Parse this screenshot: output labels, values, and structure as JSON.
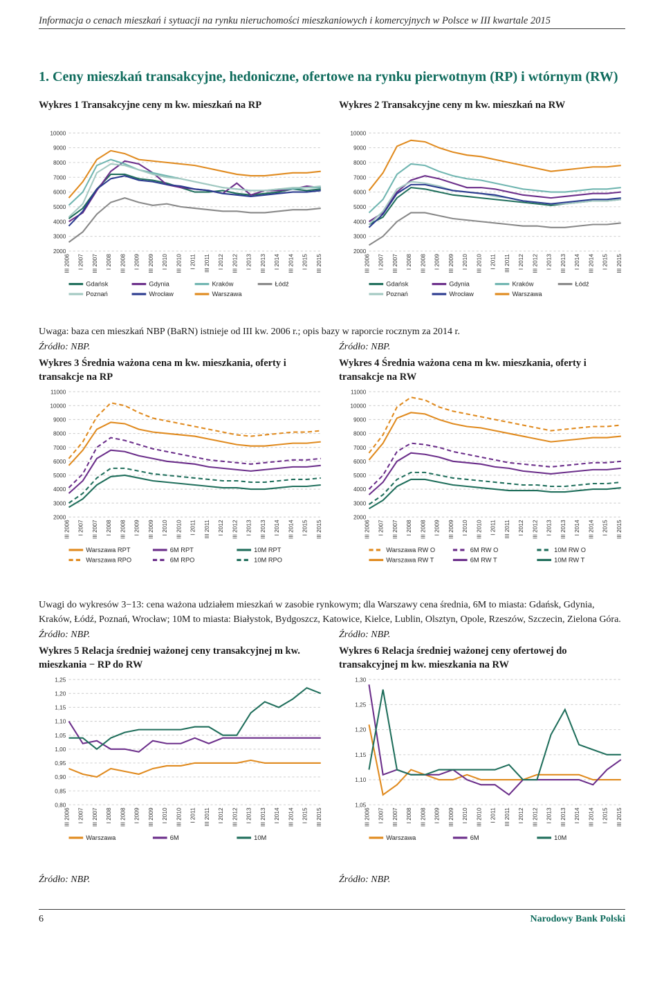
{
  "running_head": "Informacja o cenach mieszkań i sytuacji na rynku nieruchomości mieszkaniowych i komercyjnych w Polsce w III kwartale 2015",
  "section_title": "1. Ceny mieszkań transakcyjne, hedoniczne, ofertowe na rynku pierwotnym (RP) i wtórnym (RW)",
  "note1": "Uwaga: baza cen mieszkań NBP (BaRN) istnieje od III kw. 2006 r.; opis bazy w raporcie rocznym za 2014 r.",
  "note2": "Uwagi do wykresów 3−13: cena ważona udziałem mieszkań w zasobie rynkowym; dla Warszawy cena średnia, 6M to miasta: Gdańsk, Gdynia, Kraków, Łódź, Poznań, Wrocław; 10M to miasta: Białystok, Bydgoszcz, Katowice, Kielce, Lublin, Olsztyn, Opole, Rzeszów, Szczecin, Zielona Góra.",
  "source": "Źródło: NBP.",
  "footer": {
    "page": "6",
    "bank": "Narodowy Bank Polski"
  },
  "x_labels": [
    "III 2006",
    "I 2007",
    "III 2007",
    "I 2008",
    "III 2008",
    "I 2009",
    "III 2009",
    "I 2010",
    "III 2010",
    "I 2011",
    "III 2011",
    "I 2012",
    "III 2012",
    "I 2013",
    "III 2013",
    "I 2014",
    "III 2014",
    "I 2015",
    "III 2015"
  ],
  "city_colors": {
    "Gdańsk": "#1f6e5b",
    "Gdynia": "#6b2e8a",
    "Kraków": "#6fb5b0",
    "Łódź": "#888888",
    "Poznań": "#a3c9c2",
    "Wrocław": "#2b3a8f",
    "Warszawa": "#e08a1e"
  },
  "city_legend": [
    "Gdańsk",
    "Gdynia",
    "Kraków",
    "Łódź",
    "Poznań",
    "Wrocław",
    "Warszawa"
  ],
  "chart1": {
    "type": "line",
    "title": "Wykres 1 Transakcyjne ceny m kw. mieszkań na RP",
    "ylim": [
      2000,
      10000
    ],
    "ytick_step": 1000,
    "background_color": "#ffffff",
    "grid_color": "#cfcfcf",
    "grid_dash": "3,3",
    "axis_fontsize": 8,
    "series": {
      "Gdańsk": [
        4200,
        4900,
        6200,
        7200,
        7200,
        6900,
        6800,
        6600,
        6300,
        6000,
        6000,
        6100,
        5900,
        5800,
        5900,
        6000,
        6200,
        6100,
        6200
      ],
      "Gdynia": [
        4000,
        4600,
        6100,
        7400,
        8100,
        7900,
        7300,
        6500,
        6300,
        6200,
        6100,
        5900,
        6600,
        5800,
        6100,
        6100,
        6200,
        6400,
        6300
      ],
      "Kraków": [
        5100,
        6000,
        7800,
        8200,
        7900,
        7500,
        7300,
        7100,
        6900,
        6700,
        6500,
        6300,
        6200,
        6100,
        6100,
        6200,
        6200,
        6300,
        6300
      ],
      "Łódź": [
        2600,
        3300,
        4500,
        5300,
        5600,
        5300,
        5100,
        5200,
        5000,
        4900,
        4800,
        4700,
        4700,
        4600,
        4600,
        4700,
        4800,
        4800,
        4900
      ],
      "Poznań": [
        4300,
        5200,
        7300,
        7900,
        7800,
        7500,
        7200,
        7000,
        6900,
        6700,
        6500,
        6300,
        6200,
        6100,
        6100,
        6200,
        6300,
        6300,
        6400
      ],
      "Wrocław": [
        3700,
        4700,
        6200,
        6900,
        7100,
        6800,
        6700,
        6500,
        6400,
        6200,
        6100,
        5900,
        5800,
        5700,
        5800,
        5900,
        6000,
        6000,
        6100
      ],
      "Warszawa": [
        5600,
        6700,
        8200,
        8800,
        8600,
        8200,
        8100,
        8000,
        7900,
        7800,
        7600,
        7400,
        7200,
        7100,
        7100,
        7200,
        7300,
        7300,
        7400
      ]
    }
  },
  "chart2": {
    "type": "line",
    "title": "Wykres 2 Transakcyjne ceny m kw. mieszkań na RW",
    "ylim": [
      2000,
      10000
    ],
    "ytick_step": 1000,
    "background_color": "#ffffff",
    "grid_color": "#cfcfcf",
    "grid_dash": "3,3",
    "axis_fontsize": 8,
    "series": {
      "Gdańsk": [
        3800,
        4300,
        5600,
        6300,
        6200,
        6000,
        5800,
        5700,
        5600,
        5500,
        5400,
        5300,
        5200,
        5100,
        5200,
        5300,
        5400,
        5400,
        5500
      ],
      "Gdynia": [
        4000,
        4600,
        6000,
        6800,
        7100,
        6900,
        6600,
        6300,
        6300,
        6200,
        6000,
        5800,
        5700,
        5600,
        5700,
        5800,
        5900,
        5900,
        6000
      ],
      "Kraków": [
        4600,
        5500,
        7200,
        7900,
        7800,
        7400,
        7100,
        6900,
        6800,
        6600,
        6400,
        6200,
        6100,
        6000,
        6000,
        6100,
        6200,
        6200,
        6300
      ],
      "Łódź": [
        2400,
        3000,
        4000,
        4600,
        4600,
        4400,
        4200,
        4100,
        4000,
        3900,
        3800,
        3700,
        3700,
        3600,
        3600,
        3700,
        3800,
        3800,
        3900
      ],
      "Poznań": [
        3800,
        4700,
        6200,
        6700,
        6600,
        6400,
        6100,
        6000,
        5900,
        5700,
        5600,
        5400,
        5300,
        5200,
        5200,
        5300,
        5400,
        5400,
        5500
      ],
      "Wrocław": [
        3600,
        4500,
        5900,
        6500,
        6500,
        6300,
        6100,
        6000,
        5900,
        5800,
        5600,
        5400,
        5300,
        5200,
        5300,
        5400,
        5500,
        5500,
        5600
      ],
      "Warszawa": [
        6100,
        7300,
        9100,
        9500,
        9400,
        9000,
        8700,
        8500,
        8400,
        8200,
        8000,
        7800,
        7600,
        7400,
        7500,
        7600,
        7700,
        7700,
        7800
      ]
    }
  },
  "series34_colors": {
    "Warszawa": "#e08a1e",
    "6M": "#6b2e8a",
    "10M": "#1f6e5b"
  },
  "legend3": [
    {
      "label": "Warszawa RPT",
      "key": "Warszawa",
      "dash": "none"
    },
    {
      "label": "6M RPT",
      "key": "6M",
      "dash": "none"
    },
    {
      "label": "10M RPT",
      "key": "10M",
      "dash": "none"
    },
    {
      "label": "Warszawa RPO",
      "key": "Warszawa",
      "dash": "6,4"
    },
    {
      "label": "6M RPO",
      "key": "6M",
      "dash": "6,4"
    },
    {
      "label": "10M RPO",
      "key": "10M",
      "dash": "6,4"
    }
  ],
  "legend4": [
    {
      "label": "Warszawa RW O",
      "key": "Warszawa",
      "dash": "6,4"
    },
    {
      "label": "6M RW O",
      "key": "6M",
      "dash": "6,4"
    },
    {
      "label": "10M RW O",
      "key": "10M",
      "dash": "6,4"
    },
    {
      "label": "Warszawa RW T",
      "key": "Warszawa",
      "dash": "none"
    },
    {
      "label": "6M RW T",
      "key": "6M",
      "dash": "none"
    },
    {
      "label": "10M RW T",
      "key": "10M",
      "dash": "none"
    }
  ],
  "chart3": {
    "type": "line",
    "title": "Wykres 3 Średnia ważona cena m kw. mieszkania, oferty i transakcje na RP",
    "ylim": [
      2000,
      11000
    ],
    "ytick_step": 1000,
    "background_color": "#ffffff",
    "grid_color": "#cfcfcf",
    "grid_dash": "3,3",
    "axis_fontsize": 8,
    "series_solid": {
      "Warszawa": [
        5700,
        6800,
        8300,
        8800,
        8700,
        8300,
        8100,
        8000,
        7900,
        7800,
        7600,
        7400,
        7200,
        7100,
        7100,
        7200,
        7300,
        7300,
        7400
      ],
      "6M": [
        3700,
        4600,
        6200,
        6800,
        6700,
        6400,
        6200,
        6000,
        5900,
        5800,
        5600,
        5500,
        5400,
        5300,
        5400,
        5500,
        5600,
        5600,
        5700
      ],
      "10M": [
        2700,
        3300,
        4300,
        4900,
        5000,
        4800,
        4600,
        4500,
        4400,
        4300,
        4200,
        4100,
        4100,
        4000,
        4000,
        4100,
        4200,
        4200,
        4300
      ]
    },
    "series_dash": {
      "Warszawa": [
        6200,
        7400,
        9200,
        10200,
        10000,
        9500,
        9100,
        8900,
        8700,
        8500,
        8300,
        8100,
        7900,
        7800,
        7900,
        8000,
        8100,
        8100,
        8200
      ],
      "6M": [
        4100,
        5100,
        7000,
        7700,
        7500,
        7200,
        6900,
        6700,
        6500,
        6300,
        6100,
        6000,
        5900,
        5800,
        5900,
        6000,
        6100,
        6100,
        6200
      ],
      "10M": [
        3000,
        3700,
        4800,
        5500,
        5500,
        5300,
        5100,
        5000,
        4900,
        4800,
        4700,
        4600,
        4600,
        4500,
        4500,
        4600,
        4700,
        4700,
        4800
      ]
    }
  },
  "chart4": {
    "type": "line",
    "title": "Wykres 4 Średnia ważona cena m kw. mieszkania, oferty i transakcje na RW",
    "ylim": [
      2000,
      11000
    ],
    "ytick_step": 1000,
    "background_color": "#ffffff",
    "grid_color": "#cfcfcf",
    "grid_dash": "3,3",
    "axis_fontsize": 8,
    "series_solid": {
      "Warszawa": [
        6100,
        7300,
        9100,
        9500,
        9400,
        9000,
        8700,
        8500,
        8400,
        8200,
        8000,
        7800,
        7600,
        7400,
        7500,
        7600,
        7700,
        7700,
        7800
      ],
      "6M": [
        3600,
        4500,
        6000,
        6600,
        6500,
        6300,
        6000,
        5900,
        5800,
        5600,
        5500,
        5300,
        5200,
        5100,
        5200,
        5300,
        5400,
        5400,
        5500
      ],
      "10M": [
        2600,
        3200,
        4200,
        4700,
        4700,
        4500,
        4300,
        4200,
        4100,
        4000,
        3900,
        3900,
        3900,
        3800,
        3800,
        3900,
        4000,
        4000,
        4100
      ]
    },
    "series_dash": {
      "Warszawa": [
        6600,
        7900,
        9900,
        10600,
        10400,
        9900,
        9600,
        9400,
        9200,
        9000,
        8800,
        8600,
        8400,
        8200,
        8300,
        8400,
        8500,
        8500,
        8600
      ],
      "6M": [
        4000,
        5000,
        6700,
        7300,
        7200,
        7000,
        6700,
        6500,
        6300,
        6100,
        5900,
        5800,
        5700,
        5600,
        5700,
        5800,
        5900,
        5900,
        6000
      ],
      "10M": [
        2900,
        3600,
        4700,
        5200,
        5200,
        5000,
        4800,
        4700,
        4600,
        4500,
        4400,
        4300,
        4300,
        4200,
        4200,
        4300,
        4400,
        4400,
        4500
      ]
    }
  },
  "series56_colors": {
    "Warszawa": "#e08a1e",
    "6M": "#6b2e8a",
    "10M": "#1f6e5b"
  },
  "legend56": [
    "Warszawa",
    "6M",
    "10M"
  ],
  "chart5": {
    "type": "line",
    "title": "Wykres 5 Relacja średniej ważonej ceny transakcyjnej m kw. mieszkania − RP do RW",
    "ylim": [
      0.8,
      1.25
    ],
    "ytick_step": 0.05,
    "y_format": "2f",
    "background_color": "#ffffff",
    "grid_color": "#cfcfcf",
    "grid_dash": "3,3",
    "axis_fontsize": 8,
    "series": {
      "Warszawa": [
        0.93,
        0.91,
        0.9,
        0.93,
        0.92,
        0.91,
        0.93,
        0.94,
        0.94,
        0.95,
        0.95,
        0.95,
        0.95,
        0.96,
        0.95,
        0.95,
        0.95,
        0.95,
        0.95
      ],
      "6M": [
        1.1,
        1.02,
        1.03,
        1.0,
        1.0,
        0.99,
        1.03,
        1.02,
        1.02,
        1.04,
        1.02,
        1.04,
        1.04,
        1.04,
        1.04,
        1.04,
        1.04,
        1.04,
        1.04
      ],
      "10M": [
        1.04,
        1.04,
        1.0,
        1.04,
        1.06,
        1.07,
        1.07,
        1.07,
        1.07,
        1.08,
        1.08,
        1.05,
        1.05,
        1.13,
        1.17,
        1.15,
        1.18,
        1.22,
        1.2
      ]
    }
  },
  "chart6": {
    "type": "line",
    "title": "Wykres 6 Relacja średniej ważonej ceny ofertowej do transakcyjnej m kw. mieszkania na RW",
    "ylim": [
      1.05,
      1.3
    ],
    "ytick_step": 0.05,
    "y_format": "2f",
    "background_color": "#ffffff",
    "grid_color": "#cfcfcf",
    "grid_dash": "3,3",
    "axis_fontsize": 8,
    "series": {
      "Warszawa": [
        1.21,
        1.07,
        1.09,
        1.12,
        1.11,
        1.1,
        1.1,
        1.11,
        1.1,
        1.1,
        1.1,
        1.1,
        1.11,
        1.11,
        1.11,
        1.11,
        1.1,
        1.1,
        1.1
      ],
      "6M": [
        1.29,
        1.11,
        1.12,
        1.11,
        1.11,
        1.11,
        1.12,
        1.1,
        1.09,
        1.09,
        1.07,
        1.1,
        1.1,
        1.1,
        1.1,
        1.1,
        1.09,
        1.12,
        1.14
      ],
      "10M": [
        1.12,
        1.28,
        1.12,
        1.11,
        1.11,
        1.12,
        1.12,
        1.12,
        1.12,
        1.12,
        1.13,
        1.1,
        1.1,
        1.19,
        1.24,
        1.17,
        1.16,
        1.15,
        1.15
      ]
    }
  }
}
